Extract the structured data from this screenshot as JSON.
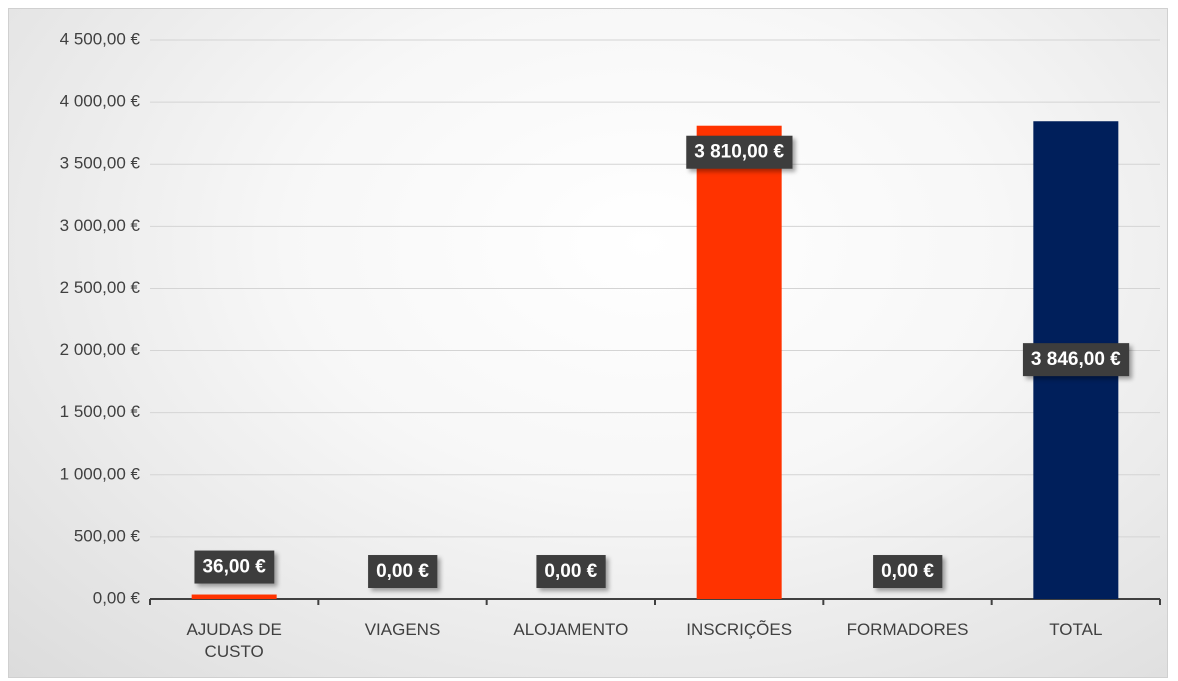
{
  "chart_data": {
    "type": "bar",
    "categories": [
      "AJUDAS DE CUSTO",
      "VIAGENS",
      "ALOJAMENTO",
      "INSCRIÇÕES",
      "FORMADORES",
      "TOTAL"
    ],
    "values": [
      36,
      0,
      0,
      3810,
      0,
      3846
    ],
    "value_labels": [
      "36,00 €",
      "0,00 €",
      "0,00 €",
      "3 810,00 €",
      "0,00 €",
      "3 846,00 €"
    ],
    "colors": [
      "#ff3300",
      "#ff3300",
      "#ff3300",
      "#ff3300",
      "#ff3300",
      "#001f5b"
    ],
    "ylim": [
      0,
      4500
    ],
    "yticks": [
      {
        "value": 0,
        "label": "0,00 €"
      },
      {
        "value": 500,
        "label": "500,00 €"
      },
      {
        "value": 1000,
        "label": "1 000,00 €"
      },
      {
        "value": 1500,
        "label": "1 500,00 €"
      },
      {
        "value": 2000,
        "label": "2 000,00 €"
      },
      {
        "value": 2500,
        "label": "2 500,00 €"
      },
      {
        "value": 3000,
        "label": "3 000,00 €"
      },
      {
        "value": 3500,
        "label": "3 500,00 €"
      },
      {
        "value": 4000,
        "label": "4 000,00 €"
      },
      {
        "value": 4500,
        "label": "4 500,00 €"
      }
    ],
    "grid": true
  }
}
